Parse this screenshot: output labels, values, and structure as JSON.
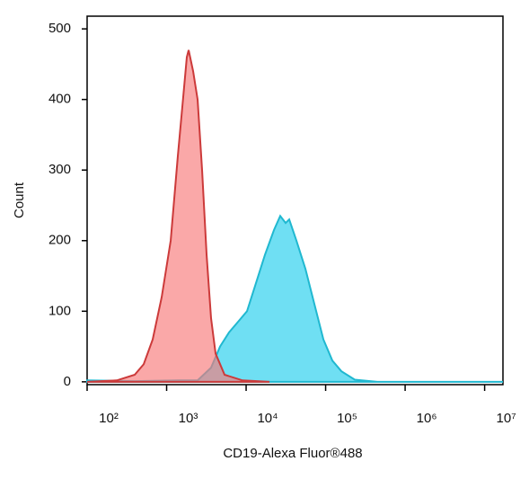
{
  "chart_data": {
    "type": "histogram-overlay",
    "x_label": "CD19-Alexa Fluor®488",
    "y_label": "Count",
    "x_log": true,
    "xlim": [
      100,
      17000000
    ],
    "ylim": [
      -4,
      518
    ],
    "xticks": [
      {
        "value": 100,
        "label": "10²"
      },
      {
        "value": 1000,
        "label": "10³"
      },
      {
        "value": 10000,
        "label": "10⁴"
      },
      {
        "value": 100000,
        "label": "10⁵"
      },
      {
        "value": 1000000,
        "label": "10⁶"
      },
      {
        "value": 10000000,
        "label": "10⁷"
      }
    ],
    "yticks": [
      0,
      100,
      200,
      300,
      400,
      500
    ],
    "series": [
      {
        "color": "#20b8d0",
        "fill": "#5fdcf2",
        "x": [
          100,
          397,
          1459,
          2453,
          3622,
          4699,
          6095,
          7907,
          10260,
          13310,
          17260,
          22390,
          26850,
          31400,
          34840,
          42940,
          55700,
          72270,
          93750,
          121600,
          157800,
          232800,
          446800,
          17000000
        ],
        "values": [
          2,
          1,
          2,
          2,
          20,
          50,
          70,
          85,
          100,
          140,
          180,
          215,
          235,
          225,
          230,
          200,
          160,
          110,
          60,
          30,
          15,
          3,
          0,
          0
        ]
      },
      {
        "color": "#cc3a3a",
        "fill": "#f77a7a",
        "x": [
          100,
          236,
          397,
          515,
          668,
          867,
          1125,
          1384,
          1577,
          1795,
          1892,
          2155,
          2453,
          2793,
          3183,
          3622,
          4130,
          5358,
          9016,
          19660
        ],
        "values": [
          0,
          2,
          10,
          25,
          60,
          120,
          200,
          320,
          390,
          460,
          470,
          440,
          400,
          300,
          180,
          90,
          40,
          10,
          2,
          0
        ]
      }
    ]
  }
}
